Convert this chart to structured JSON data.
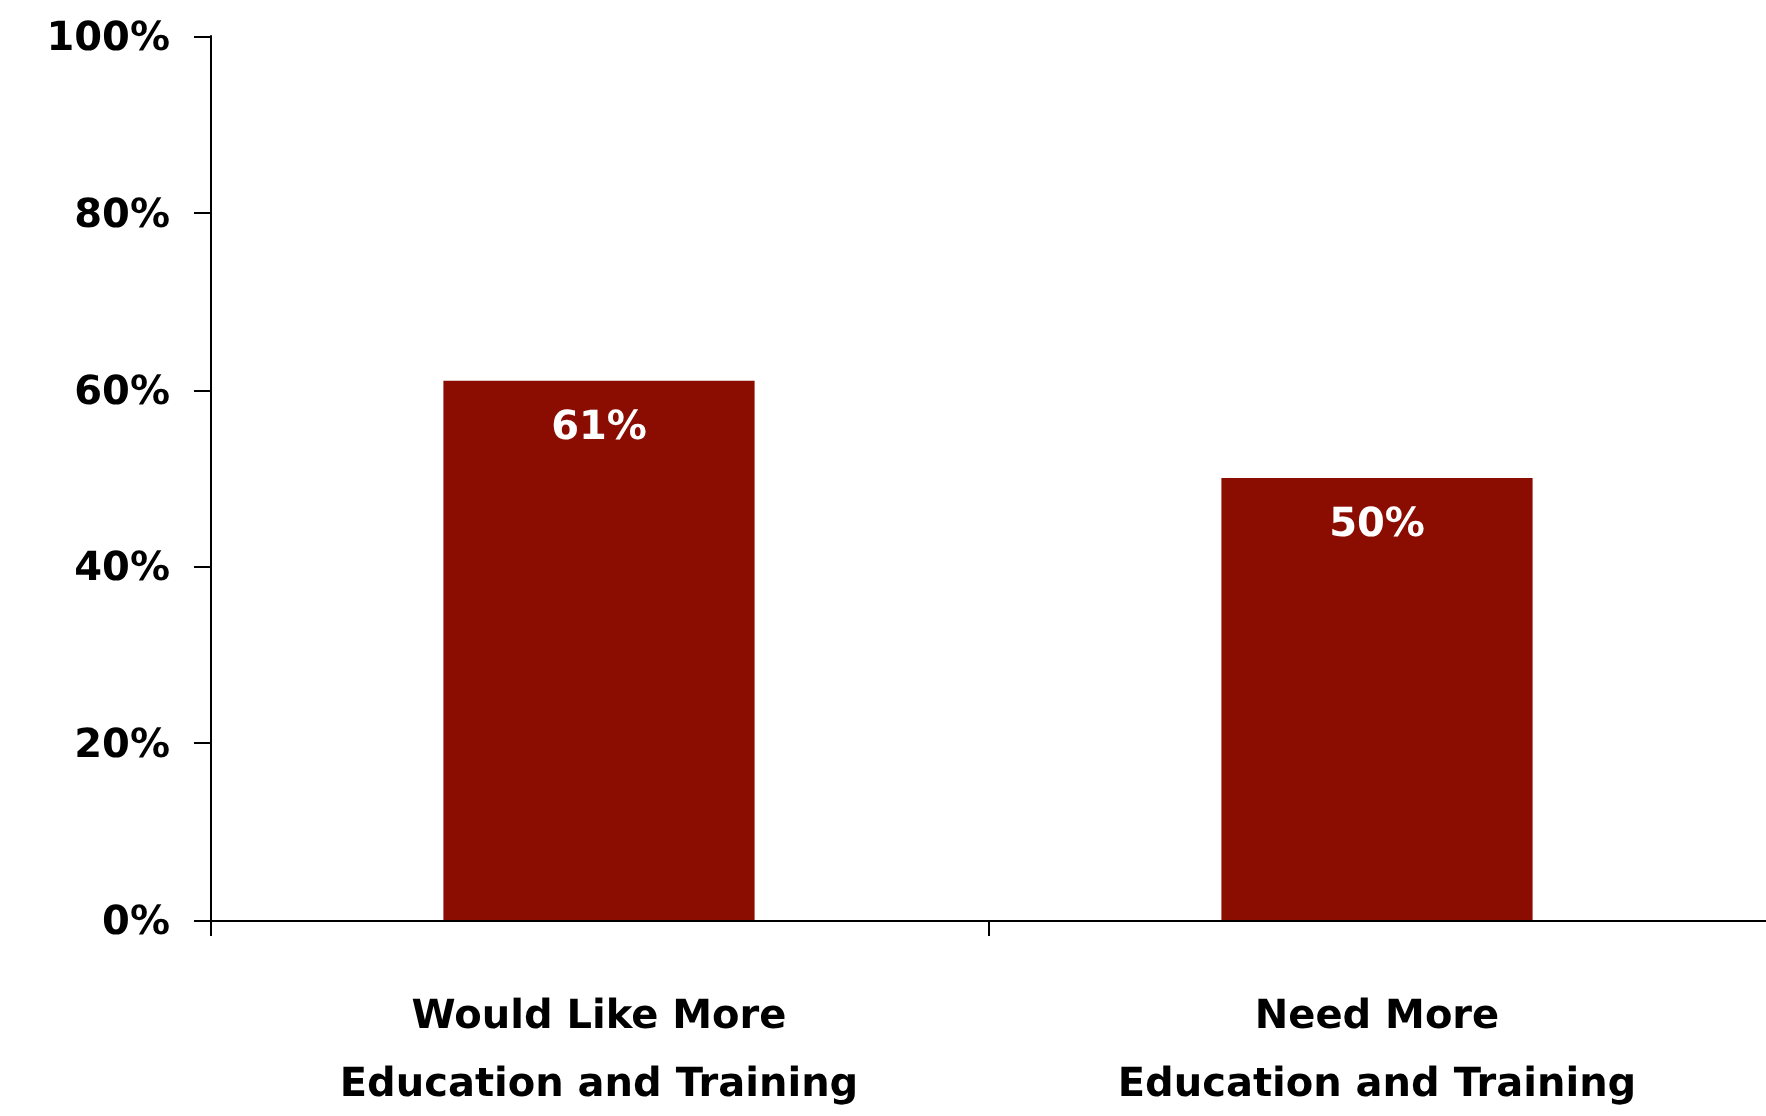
{
  "chart_data": {
    "type": "bar",
    "categories": [
      "Would Like More\nEducation and Training",
      "Need More\nEducation and Training"
    ],
    "series": [
      {
        "color": "#8b0d02",
        "values": [
          61,
          50
        ],
        "value_labels": [
          "61%",
          "50%"
        ]
      }
    ],
    "ylim": [
      0,
      100
    ],
    "yticks": [
      {
        "value": 0,
        "label": "0%"
      },
      {
        "value": 20,
        "label": "20%"
      },
      {
        "value": 40,
        "label": "40%"
      },
      {
        "value": 60,
        "label": "60%"
      },
      {
        "value": 80,
        "label": "80%"
      },
      {
        "value": 100,
        "label": "100%"
      }
    ],
    "grid": false
  }
}
